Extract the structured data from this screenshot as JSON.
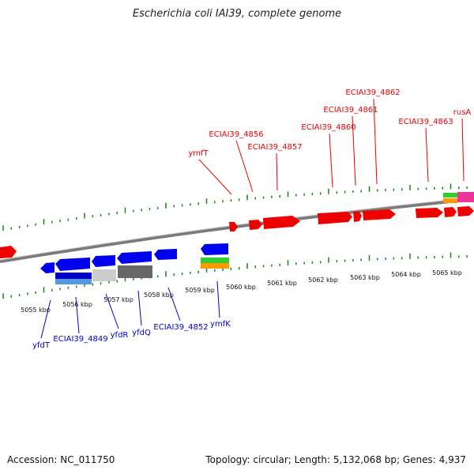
{
  "title": "Escherichia coli IAI39, complete genome",
  "accession_text": "Accession: NC_011750",
  "topology_text": "Topology: circular; Length: 5,132,068 bp; Genes: 4,937",
  "colors": {
    "forward_gene": "#ee0000",
    "reverse_gene": "#0000dd",
    "backbone": "#888888",
    "tick": "#118811"
  },
  "kbp_labels": [
    "5055 kbp",
    "5056 kbp",
    "5057 kbp",
    "5058 kbp",
    "5059 kbp",
    "5060 kbp",
    "5061 kbp",
    "5062 kbp",
    "5063 kbp",
    "5064 kbp",
    "5065 kbp"
  ],
  "forward_labels": [
    "ymfT",
    "ECIAI39_4856",
    "ECIAI39_4857",
    "ECIAI39_4860",
    "ECIAI39_4861",
    "ECIAI39_4862",
    "ECIAI39_4863",
    "rusA"
  ],
  "reverse_labels": [
    "yfdT",
    "ECIAI39_4849",
    "yfdR",
    "yfdQ",
    "ECIAI39_4852",
    "ymfK"
  ]
}
